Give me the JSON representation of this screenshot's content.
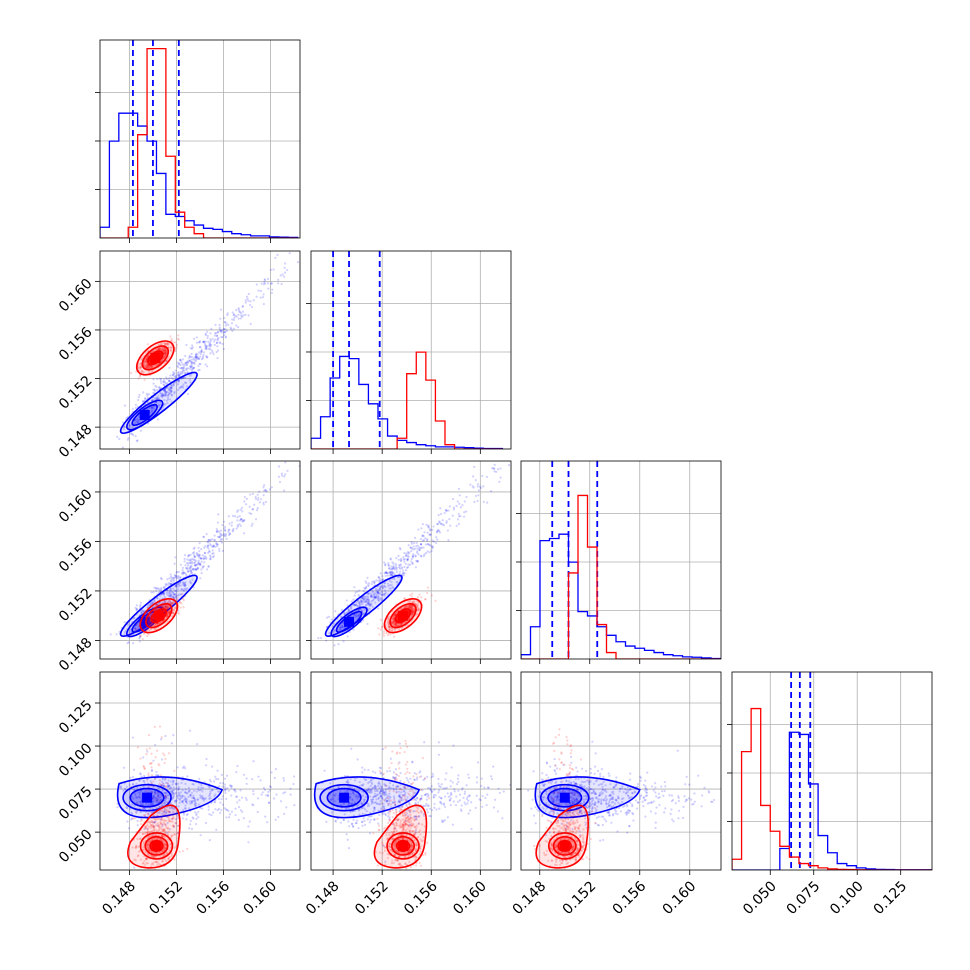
{
  "chart_data": {
    "type": "corner",
    "description_free": true,
    "axes": [
      {
        "range": [
          0.1455,
          0.1625
        ],
        "ticks": [
          0.148,
          0.152,
          0.156,
          0.16
        ],
        "tick_labels": [
          "0.148",
          "0.152",
          "0.156",
          "0.160"
        ]
      },
      {
        "range": [
          0.1462,
          0.1625
        ],
        "ticks": [
          0.148,
          0.152,
          0.156,
          0.16
        ],
        "tick_labels": [
          "0.148",
          "0.152",
          "0.156",
          "0.160"
        ]
      },
      {
        "range": [
          0.1465,
          0.1625
        ],
        "ticks": [
          0.148,
          0.152,
          0.156,
          0.16
        ],
        "tick_labels": [
          "0.148",
          "0.152",
          "0.156",
          "0.160"
        ]
      },
      {
        "range": [
          0.028,
          0.143
        ],
        "ticks": [
          0.05,
          0.075,
          0.1,
          0.125
        ],
        "tick_labels": [
          "0.050",
          "0.075",
          "0.100",
          "0.125"
        ]
      }
    ],
    "series": [
      {
        "color": "#0000ff",
        "quantiles": [
          [
            0.1483,
            0.15,
            0.1522
          ],
          [
            0.148,
            0.1493,
            0.1518
          ],
          [
            0.149,
            0.1503,
            0.1526
          ],
          [
            0.062,
            0.067,
            0.073
          ]
        ],
        "hist": [
          {
            "edges_start": 0.1455,
            "bin": 0.0008,
            "counts": [
              0.05,
              0.45,
              0.58,
              0.58,
              0.52,
              0.45,
              0.3,
              0.11,
              0.1,
              0.08,
              0.06,
              0.045,
              0.04,
              0.03,
              0.02,
              0.015,
              0.01,
              0.01,
              0.005,
              0.004,
              0.003
            ]
          },
          {
            "edges_start": 0.1462,
            "bin": 0.00078,
            "counts": [
              0.05,
              0.15,
              0.33,
              0.43,
              0.42,
              0.3,
              0.21,
              0.14,
              0.06,
              0.04,
              0.03,
              0.02,
              0.015,
              0.01,
              0.01,
              0.008,
              0.006,
              0.004,
              0.002,
              0.002
            ]
          },
          {
            "edges_start": 0.1465,
            "bin": 0.00076,
            "counts": [
              0.02,
              0.15,
              0.55,
              0.56,
              0.58,
              0.45,
              0.22,
              0.2,
              0.15,
              0.11,
              0.08,
              0.06,
              0.05,
              0.04,
              0.03,
              0.02,
              0.015,
              0.01,
              0.008,
              0.005,
              0.002
            ]
          },
          {
            "edges_start": 0.028,
            "bin": 0.0055,
            "counts": [
              0,
              0,
              0,
              0,
              0,
              0.1,
              0.64,
              0.63,
              0.4,
              0.16,
              0.08,
              0.03,
              0.02,
              0.01,
              0.005,
              0.003,
              0.002,
              0.001,
              0.001,
              0.001,
              0.001
            ]
          }
        ],
        "centers": [
          [
            0.1495,
            0.1495
          ],
          [
            0.1495,
            0.07
          ]
        ],
        "contour_note": "nested density contours"
      },
      {
        "color": "#ff0000",
        "quantiles": [],
        "hist": [
          {
            "edges_start": 0.1455,
            "bin": 0.0008,
            "counts": [
              0,
              0,
              0,
              0.05,
              0.48,
              0.88,
              0.88,
              0.38,
              0.12,
              0.05,
              0.02,
              0,
              0,
              0,
              0,
              0,
              0,
              0,
              0,
              0,
              0
            ]
          },
          {
            "edges_start": 0.1462,
            "bin": 0.00078,
            "counts": [
              0,
              0,
              0,
              0,
              0,
              0,
              0,
              0,
              0,
              0.05,
              0.35,
              0.45,
              0.32,
              0.13,
              0.02,
              0,
              0,
              0,
              0,
              0
            ]
          },
          {
            "edges_start": 0.1465,
            "bin": 0.00076,
            "counts": [
              0,
              0,
              0,
              0,
              0,
              0.4,
              0.76,
              0.52,
              0.16,
              0.03,
              0,
              0,
              0,
              0,
              0,
              0,
              0,
              0,
              0,
              0,
              0
            ]
          },
          {
            "edges_start": 0.028,
            "bin": 0.0055,
            "counts": [
              0.05,
              0.55,
              0.75,
              0.3,
              0.18,
              0.11,
              0.06,
              0.03,
              0.02,
              0.01,
              0.005,
              0.003,
              0.002,
              0.001,
              0,
              0,
              0,
              0,
              0,
              0,
              0
            ]
          }
        ]
      }
    ],
    "grid": true
  }
}
